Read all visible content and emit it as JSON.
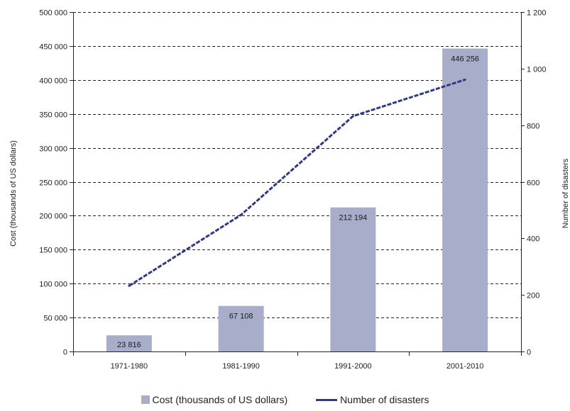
{
  "colors": {
    "bar": "#a8aec9",
    "line": "#2e3a87",
    "grid": "#222222",
    "axis": "#222222"
  },
  "legend": {
    "bar_label": "Cost (thousands of US dollars)",
    "line_label": "Number of disasters"
  },
  "chart_data": {
    "type": "bar",
    "categories": [
      "1971-1980",
      "1981-1990",
      "1991-2000",
      "2001-2010"
    ],
    "series": [
      {
        "name": "Cost (thousands of US dollars)",
        "type": "bar",
        "axis": "left",
        "values": [
          23816,
          67108,
          212194,
          446256
        ],
        "labels": [
          "23 816",
          "67 108",
          "212 194",
          "446 256"
        ]
      },
      {
        "name": "Number of disasters",
        "type": "line",
        "axis": "right",
        "style": "dashed",
        "values": [
          232,
          483,
          832,
          961
        ]
      }
    ],
    "ylabel": "Cost (thousands of US dollars)",
    "ylim": [
      0,
      500000
    ],
    "yticks": [
      {
        "v": 0,
        "t": "0"
      },
      {
        "v": 50000,
        "t": "50 000"
      },
      {
        "v": 100000,
        "t": "100 000"
      },
      {
        "v": 150000,
        "t": "150 000"
      },
      {
        "v": 200000,
        "t": "200 000"
      },
      {
        "v": 250000,
        "t": "250 000"
      },
      {
        "v": 300000,
        "t": "300 000"
      },
      {
        "v": 350000,
        "t": "350 000"
      },
      {
        "v": 400000,
        "t": "400 000"
      },
      {
        "v": 450000,
        "t": "450 000"
      },
      {
        "v": 500000,
        "t": "500 000"
      }
    ],
    "y2label": "Number of disasters",
    "y2lim": [
      0,
      1200
    ],
    "y2ticks": [
      {
        "v": 0,
        "t": "0"
      },
      {
        "v": 200,
        "t": "200"
      },
      {
        "v": 400,
        "t": "400"
      },
      {
        "v": 600,
        "t": "600"
      },
      {
        "v": 800,
        "t": "800"
      },
      {
        "v": 1000,
        "t": "1 000"
      },
      {
        "v": 1200,
        "t": "1 200"
      }
    ],
    "grid": true,
    "grid_style": "dashed",
    "legend_position": "bottom"
  }
}
